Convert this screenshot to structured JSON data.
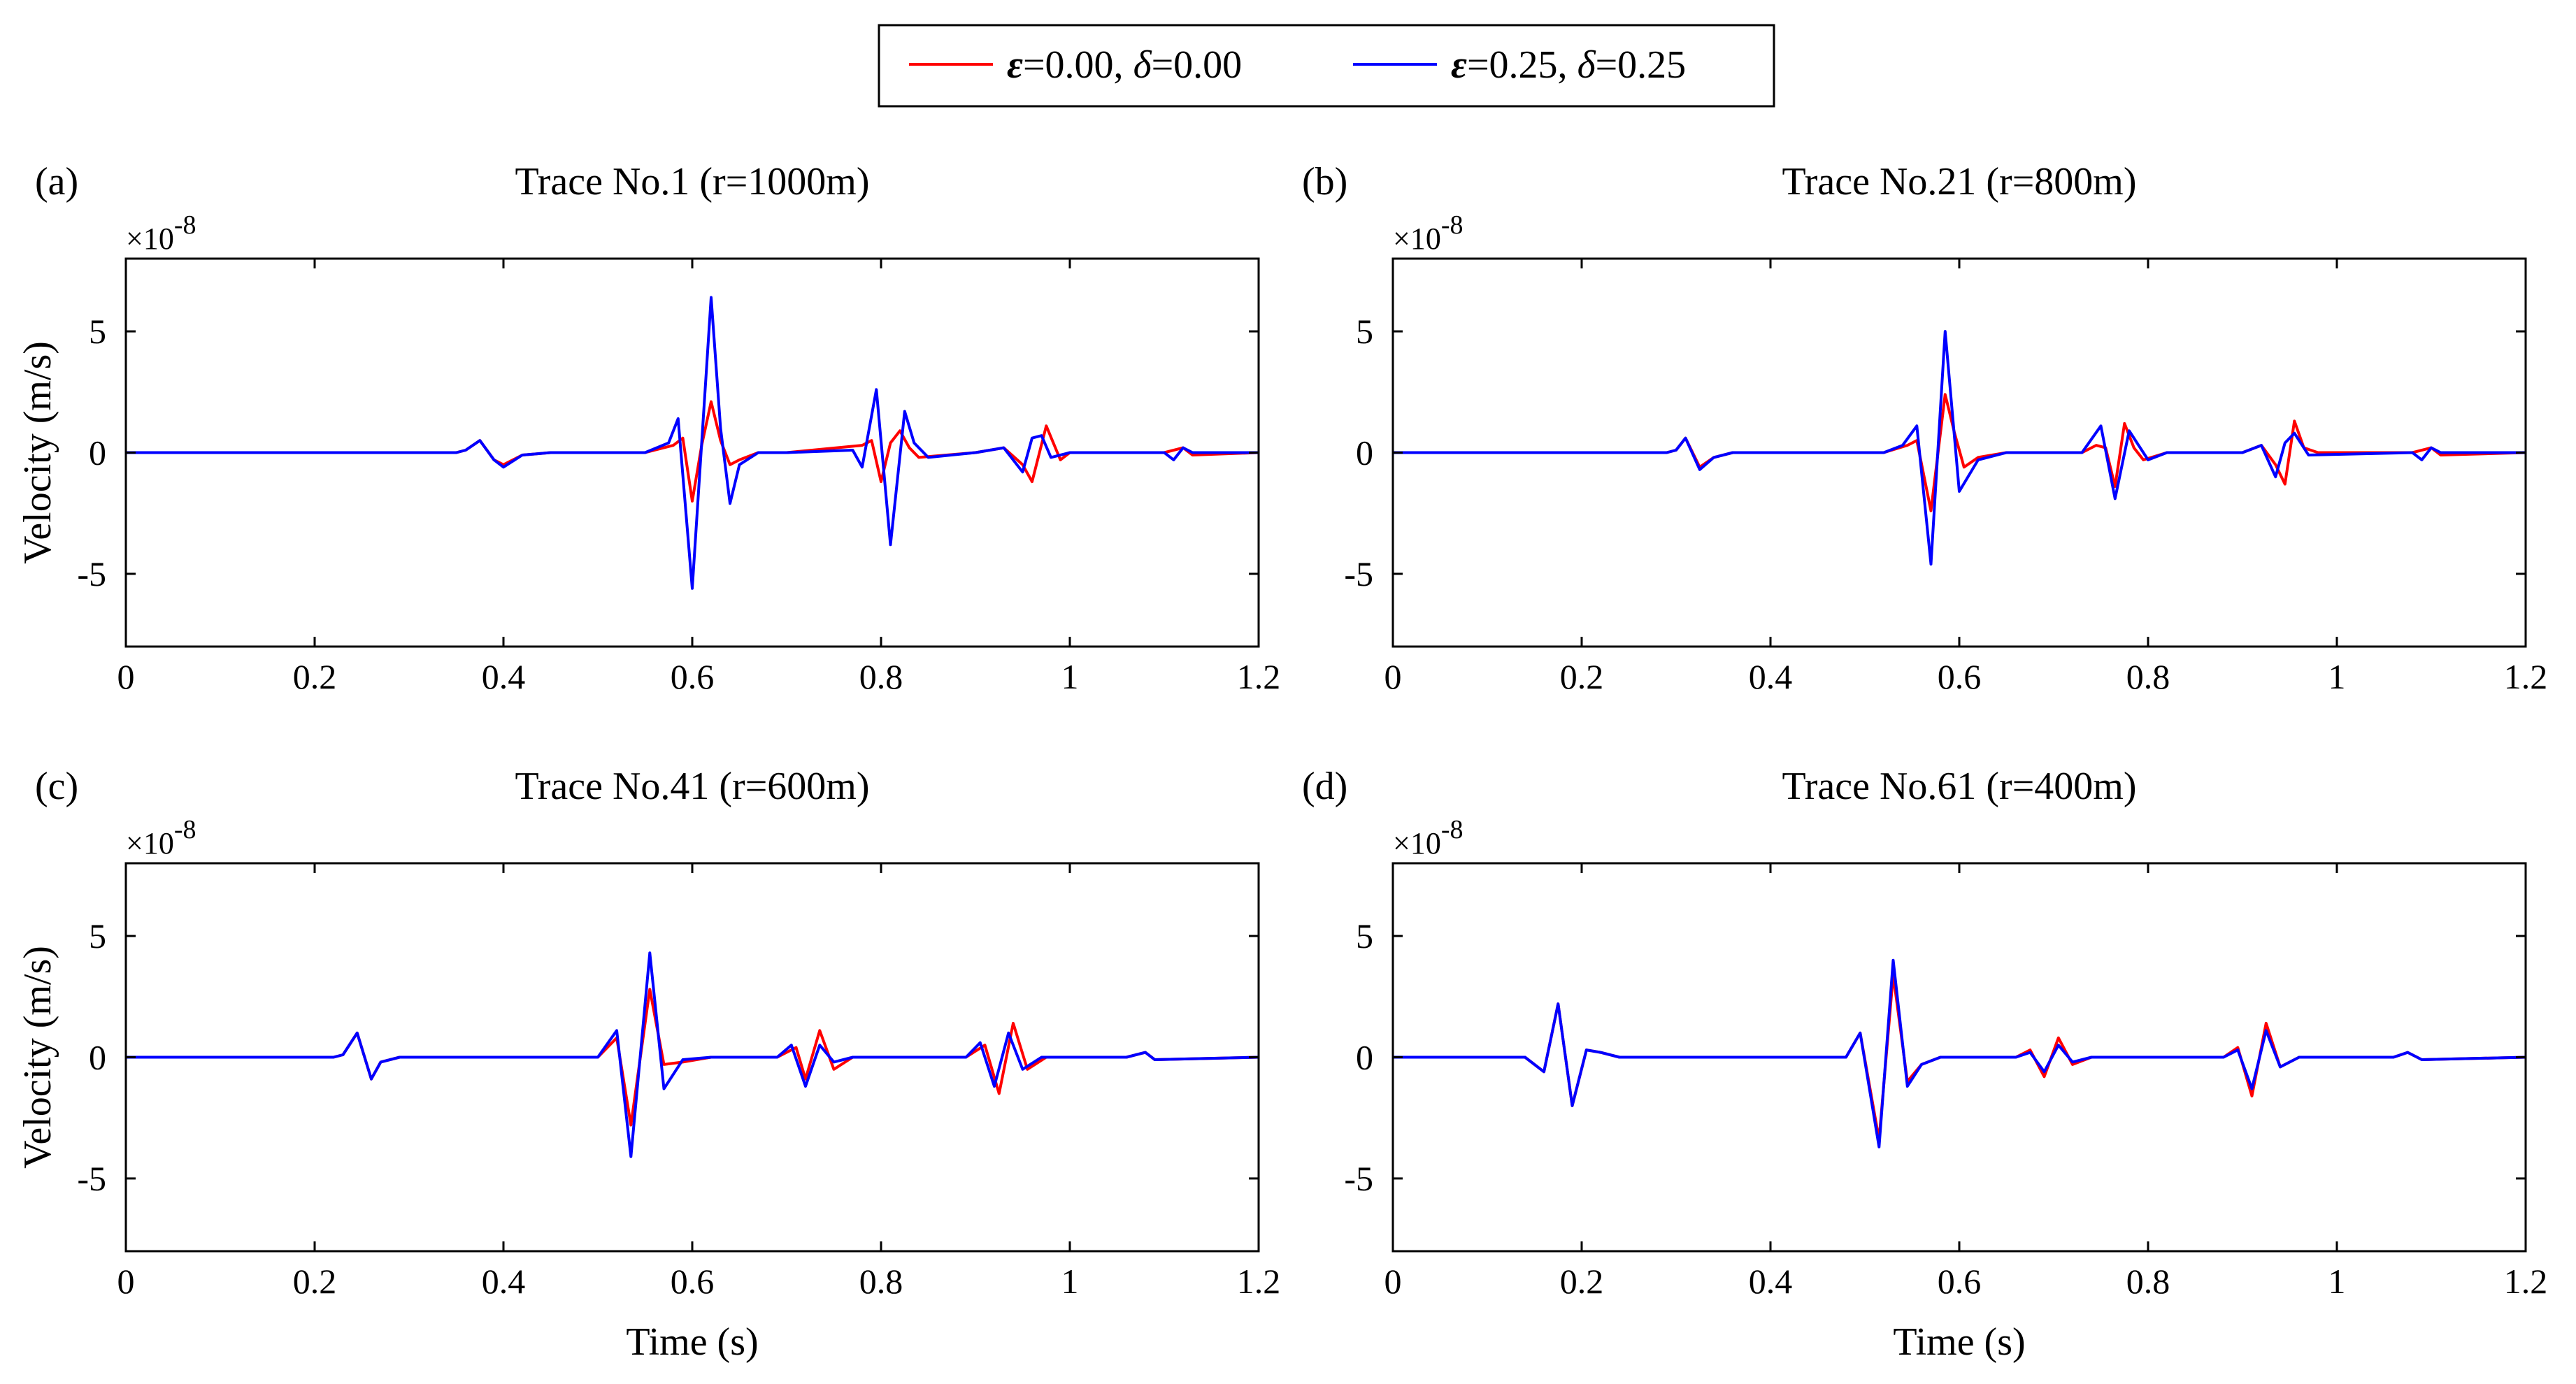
{
  "legend": {
    "entries": [
      {
        "name": "ε=0.00,  δ=0.00",
        "parts": [
          {
            "text": "ε",
            "style": "bold-italic"
          },
          {
            "text": "=0.00,  ",
            "style": "normal"
          },
          {
            "text": "δ",
            "style": "italic"
          },
          {
            "text": "=0.00",
            "style": "normal"
          }
        ],
        "color": "#ff0000"
      },
      {
        "name": "ε=0.25,  δ=0.25",
        "parts": [
          {
            "text": "ε",
            "style": "bold-italic"
          },
          {
            "text": "=0.25,  ",
            "style": "normal"
          },
          {
            "text": "δ",
            "style": "italic"
          },
          {
            "text": "=0.25",
            "style": "normal"
          }
        ],
        "color": "#0000ff"
      }
    ]
  },
  "chart_data": [
    {
      "type": "line",
      "panel_label": "(a)",
      "title": "Trace No.1 (r=1000m)",
      "xlabel": "",
      "ylabel": "Velocity (m/s)",
      "y_multiplier": "×10",
      "y_exponent": "-8",
      "xlim": [
        0,
        1.2
      ],
      "ylim": [
        -8,
        8
      ],
      "xticks": [
        0,
        0.2,
        0.4,
        0.6,
        0.8,
        1,
        1.2
      ],
      "xtick_labels": [
        "0",
        "0.2",
        "0.4",
        "0.6",
        "0.8",
        "1",
        "1.2"
      ],
      "yticks": [
        -5,
        0,
        5
      ],
      "ytick_labels": [
        "-5",
        "0",
        "5"
      ],
      "series": [
        {
          "name": "ε=0.00,  δ=0.00",
          "color": "#ff0000",
          "x": [
            0,
            0.35,
            0.36,
            0.375,
            0.39,
            0.4,
            0.42,
            0.45,
            0.55,
            0.58,
            0.59,
            0.6,
            0.61,
            0.62,
            0.63,
            0.64,
            0.65,
            0.67,
            0.7,
            0.78,
            0.79,
            0.8,
            0.81,
            0.82,
            0.83,
            0.84,
            0.9,
            0.93,
            0.95,
            0.96,
            0.975,
            0.99,
            1.0,
            1.1,
            1.12,
            1.13,
            1.2
          ],
          "y": [
            0,
            0,
            0.1,
            0.5,
            -0.3,
            -0.5,
            -0.1,
            0,
            0,
            0.3,
            0.6,
            -2.0,
            0.3,
            2.1,
            0.5,
            -0.5,
            -0.3,
            0,
            0,
            0.3,
            0.5,
            -1.2,
            0.4,
            0.9,
            0.2,
            -0.2,
            0,
            0.2,
            -0.5,
            -1.2,
            1.1,
            -0.3,
            0,
            0,
            0.2,
            -0.1,
            0
          ]
        },
        {
          "name": "ε=0.25,  δ=0.25",
          "color": "#0000ff",
          "x": [
            0,
            0.35,
            0.36,
            0.375,
            0.39,
            0.4,
            0.42,
            0.45,
            0.55,
            0.575,
            0.585,
            0.6,
            0.62,
            0.63,
            0.64,
            0.65,
            0.67,
            0.7,
            0.77,
            0.78,
            0.795,
            0.81,
            0.825,
            0.835,
            0.85,
            0.9,
            0.93,
            0.95,
            0.96,
            0.97,
            0.98,
            1.0,
            1.1,
            1.11,
            1.12,
            1.13,
            1.2
          ],
          "y": [
            0,
            0,
            0.1,
            0.5,
            -0.3,
            -0.6,
            -0.1,
            0,
            0,
            0.4,
            1.4,
            -5.6,
            6.4,
            1.0,
            -2.1,
            -0.5,
            0,
            0,
            0.1,
            -0.6,
            2.6,
            -3.8,
            1.7,
            0.4,
            -0.2,
            0,
            0.2,
            -0.8,
            0.6,
            0.7,
            -0.2,
            0,
            0,
            -0.3,
            0.2,
            0,
            0
          ]
        }
      ]
    },
    {
      "type": "line",
      "panel_label": "(b)",
      "title": "Trace No.21 (r=800m)",
      "xlabel": "",
      "ylabel": "",
      "y_multiplier": "×10",
      "y_exponent": "-8",
      "xlim": [
        0,
        1.2
      ],
      "ylim": [
        -8,
        8
      ],
      "xticks": [
        0,
        0.2,
        0.4,
        0.6,
        0.8,
        1,
        1.2
      ],
      "xtick_labels": [
        "0",
        "0.2",
        "0.4",
        "0.6",
        "0.8",
        "1",
        "1.2"
      ],
      "yticks": [
        -5,
        0,
        5
      ],
      "ytick_labels": [
        "-5",
        "0",
        "5"
      ],
      "series": [
        {
          "name": "ε=0.00,  δ=0.00",
          "color": "#ff0000",
          "x": [
            0,
            0.29,
            0.3,
            0.31,
            0.325,
            0.34,
            0.36,
            0.4,
            0.52,
            0.545,
            0.555,
            0.57,
            0.585,
            0.595,
            0.605,
            0.62,
            0.65,
            0.73,
            0.745,
            0.755,
            0.765,
            0.775,
            0.785,
            0.795,
            0.82,
            0.9,
            0.92,
            0.935,
            0.945,
            0.955,
            0.965,
            0.98,
            1.08,
            1.1,
            1.11,
            1.2
          ],
          "y": [
            0,
            0,
            0.1,
            0.6,
            -0.6,
            -0.2,
            0,
            0,
            0,
            0.3,
            0.5,
            -2.4,
            2.4,
            0.8,
            -0.6,
            -0.2,
            0,
            0,
            0.3,
            0.2,
            -1.4,
            1.2,
            0.2,
            -0.3,
            0,
            0,
            0.3,
            -0.5,
            -1.3,
            1.3,
            0.2,
            0,
            0,
            0.2,
            -0.1,
            0
          ]
        },
        {
          "name": "ε=0.25,  δ=0.25",
          "color": "#0000ff",
          "x": [
            0,
            0.29,
            0.3,
            0.31,
            0.325,
            0.34,
            0.36,
            0.4,
            0.52,
            0.54,
            0.555,
            0.57,
            0.585,
            0.6,
            0.62,
            0.65,
            0.73,
            0.75,
            0.765,
            0.78,
            0.8,
            0.82,
            0.9,
            0.92,
            0.935,
            0.945,
            0.955,
            0.97,
            1.08,
            1.09,
            1.1,
            1.11,
            1.2
          ],
          "y": [
            0,
            0,
            0.1,
            0.6,
            -0.7,
            -0.2,
            0,
            0,
            0,
            0.3,
            1.1,
            -4.6,
            5.0,
            -1.6,
            -0.3,
            0,
            0,
            1.1,
            -1.9,
            0.9,
            -0.3,
            0,
            0,
            0.3,
            -1.0,
            0.4,
            0.8,
            -0.1,
            0,
            -0.3,
            0.2,
            0,
            0
          ]
        }
      ]
    },
    {
      "type": "line",
      "panel_label": "(c)",
      "title": "Trace No.41 (r=600m)",
      "xlabel": "Time (s)",
      "ylabel": "Velocity (m/s)",
      "y_multiplier": "×10",
      "y_exponent": "-8",
      "xlim": [
        0,
        1.2
      ],
      "ylim": [
        -8,
        8
      ],
      "xticks": [
        0,
        0.2,
        0.4,
        0.6,
        0.8,
        1,
        1.2
      ],
      "xtick_labels": [
        "0",
        "0.2",
        "0.4",
        "0.6",
        "0.8",
        "1",
        "1.2"
      ],
      "yticks": [
        -5,
        0,
        5
      ],
      "ytick_labels": [
        "-5",
        "0",
        "5"
      ],
      "series": [
        {
          "name": "ε=0.00,  δ=0.00",
          "color": "#ff0000",
          "x": [
            0,
            0.22,
            0.23,
            0.245,
            0.26,
            0.27,
            0.29,
            0.33,
            0.5,
            0.52,
            0.535,
            0.555,
            0.57,
            0.59,
            0.62,
            0.69,
            0.71,
            0.72,
            0.735,
            0.75,
            0.77,
            0.89,
            0.91,
            0.925,
            0.94,
            0.955,
            0.975,
            1.06,
            1.08,
            1.09,
            1.2
          ],
          "y": [
            0,
            0,
            0.1,
            1.0,
            -0.9,
            -0.2,
            0,
            0,
            0,
            0.8,
            -2.8,
            2.8,
            -0.3,
            -0.2,
            0,
            0,
            0.4,
            -0.9,
            1.1,
            -0.5,
            0,
            0,
            0.5,
            -1.5,
            1.4,
            -0.5,
            0,
            0,
            0.2,
            -0.1,
            0
          ]
        },
        {
          "name": "ε=0.25,  δ=0.25",
          "color": "#0000ff",
          "x": [
            0,
            0.22,
            0.23,
            0.245,
            0.26,
            0.27,
            0.29,
            0.33,
            0.5,
            0.52,
            0.535,
            0.555,
            0.57,
            0.59,
            0.62,
            0.69,
            0.705,
            0.72,
            0.735,
            0.75,
            0.77,
            0.89,
            0.905,
            0.92,
            0.935,
            0.95,
            0.97,
            1.06,
            1.08,
            1.09,
            1.2
          ],
          "y": [
            0,
            0,
            0.1,
            1.0,
            -0.9,
            -0.2,
            0,
            0,
            0,
            1.1,
            -4.1,
            4.3,
            -1.3,
            -0.1,
            0,
            0,
            0.5,
            -1.2,
            0.5,
            -0.2,
            0,
            0,
            0.6,
            -1.2,
            1.0,
            -0.5,
            0,
            0,
            0.2,
            -0.1,
            0
          ]
        }
      ]
    },
    {
      "type": "line",
      "panel_label": "(d)",
      "title": "Trace No.61 (r=400m)",
      "xlabel": "Time (s)",
      "ylabel": "",
      "y_multiplier": "×10",
      "y_exponent": "-8",
      "xlim": [
        0,
        1.2
      ],
      "ylim": [
        -8,
        8
      ],
      "xticks": [
        0,
        0.2,
        0.4,
        0.6,
        0.8,
        1,
        1.2
      ],
      "xtick_labels": [
        "0",
        "0.2",
        "0.4",
        "0.6",
        "0.8",
        "1",
        "1.2"
      ],
      "yticks": [
        -5,
        0,
        5
      ],
      "ytick_labels": [
        "-5",
        "0",
        "5"
      ],
      "series": [
        {
          "name": "ε=0.00,  δ=0.00",
          "color": "#ff0000",
          "x": [
            0,
            0.14,
            0.16,
            0.175,
            0.19,
            0.205,
            0.22,
            0.24,
            0.28,
            0.48,
            0.495,
            0.515,
            0.53,
            0.545,
            0.56,
            0.58,
            0.66,
            0.675,
            0.69,
            0.705,
            0.72,
            0.74,
            0.88,
            0.895,
            0.91,
            0.925,
            0.94,
            0.96,
            1.06,
            1.075,
            1.09,
            1.2
          ],
          "y": [
            0,
            0,
            -0.6,
            2.2,
            -2.0,
            0.3,
            0.2,
            0,
            0,
            0,
            1.0,
            -3.4,
            3.4,
            -1.0,
            -0.3,
            0,
            0,
            0.3,
            -0.8,
            0.8,
            -0.3,
            0,
            0,
            0.4,
            -1.6,
            1.4,
            -0.4,
            0,
            0,
            0.2,
            -0.1,
            0
          ]
        },
        {
          "name": "ε=0.25,  δ=0.25",
          "color": "#0000ff",
          "x": [
            0,
            0.14,
            0.16,
            0.175,
            0.19,
            0.205,
            0.22,
            0.24,
            0.28,
            0.48,
            0.495,
            0.515,
            0.53,
            0.545,
            0.56,
            0.58,
            0.66,
            0.675,
            0.69,
            0.705,
            0.72,
            0.74,
            0.88,
            0.895,
            0.91,
            0.925,
            0.94,
            0.96,
            1.06,
            1.075,
            1.09,
            1.2
          ],
          "y": [
            0,
            0,
            -0.6,
            2.2,
            -2.0,
            0.3,
            0.2,
            0,
            0,
            0,
            1.0,
            -3.7,
            4.0,
            -1.2,
            -0.3,
            0,
            0,
            0.2,
            -0.6,
            0.5,
            -0.2,
            0,
            0,
            0.3,
            -1.3,
            1.1,
            -0.4,
            0,
            0,
            0.2,
            -0.1,
            0
          ]
        }
      ]
    }
  ]
}
